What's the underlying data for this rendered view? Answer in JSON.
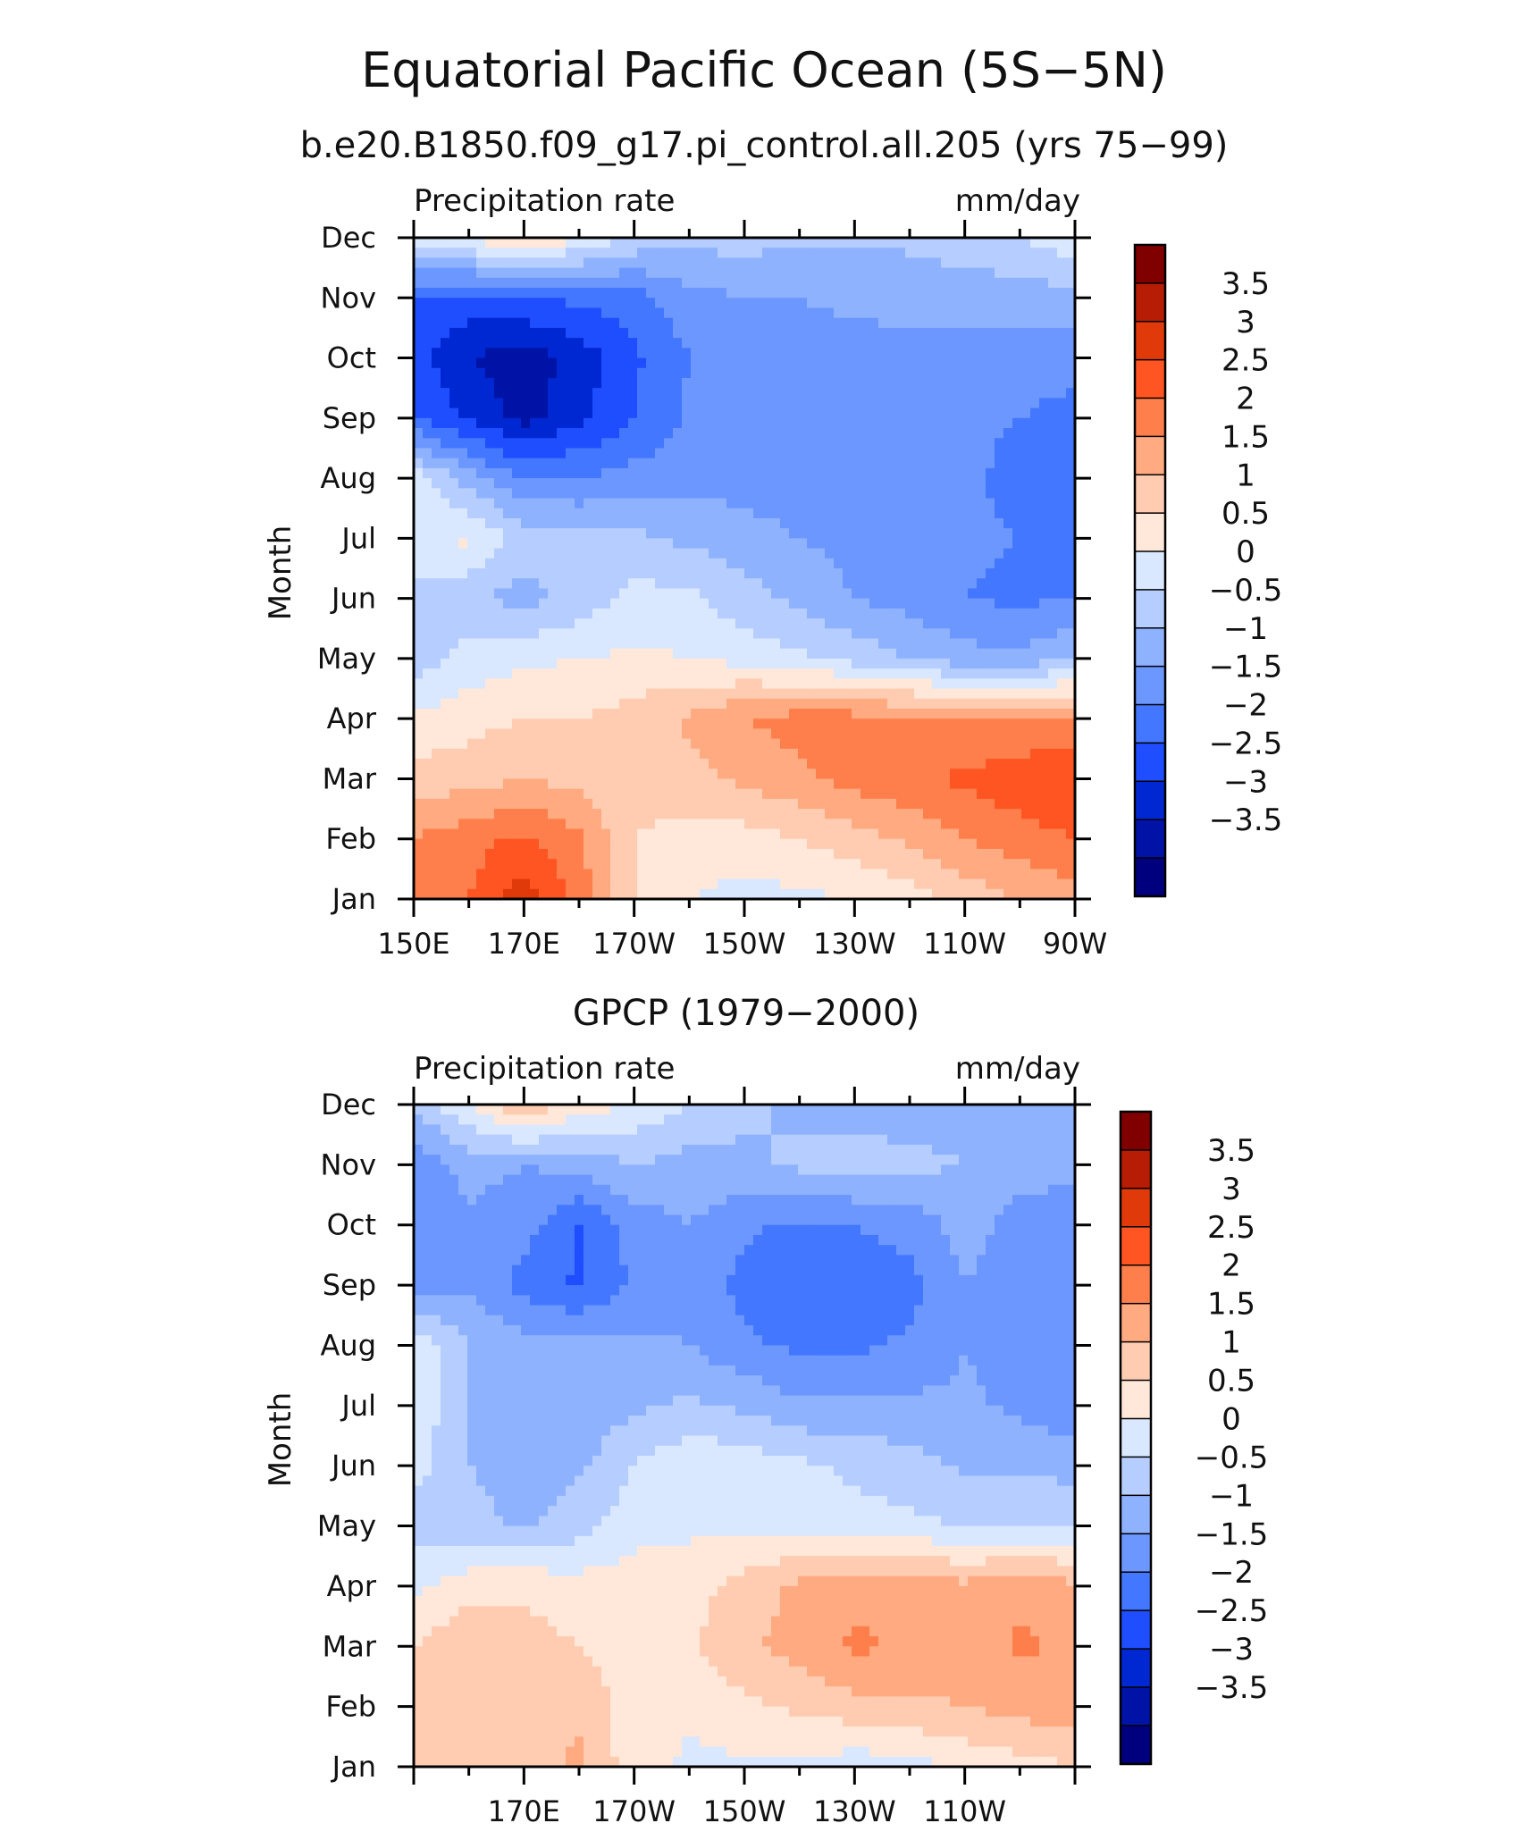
{
  "figure": {
    "title": "Equatorial Pacific Ocean (5S−5N)"
  },
  "colorbar": {
    "colors": [
      "#00007F",
      "#0013A7",
      "#0028D2",
      "#1E4EFF",
      "#4477FF",
      "#6B97FF",
      "#8FB2FF",
      "#B5CDFF",
      "#D9E7FF",
      "#FFE8D9",
      "#FFCCB2",
      "#FFAA80",
      "#FF7F4C",
      "#FF5522",
      "#E13A0A",
      "#B71C05",
      "#800000"
    ],
    "labels": [
      "3.5",
      "3",
      "2.5",
      "2",
      "1.5",
      "1",
      "0.5",
      "0",
      "−0.5",
      "−1",
      "−1.5",
      "−2",
      "−2.5",
      "−3",
      "−3.5"
    ],
    "levels": [
      -3.5,
      -3,
      -2.5,
      -2,
      -1.5,
      -1,
      -0.5,
      0,
      0.5,
      1,
      1.5,
      2,
      2.5,
      3,
      3.5
    ]
  },
  "chart_data": [
    {
      "type": "heatmap",
      "title": "b.e20.B1850.f09_g17.pi_control.all.205 (yrs 75−99)",
      "left_string": "Precipitation rate",
      "right_string": "mm/day",
      "ylabel": "Month",
      "xlabel": "",
      "x_ticklabels": [
        "150E",
        "170E",
        "170W",
        "150W",
        "130W",
        "110W",
        "90W"
      ],
      "y_ticklabels": [
        "Jan",
        "Feb",
        "Mar",
        "Apr",
        "May",
        "Jun",
        "Jul",
        "Aug",
        "Sep",
        "Oct",
        "Nov",
        "Dec"
      ],
      "x_lon": [
        150,
        160,
        170,
        180,
        190,
        200,
        210,
        220,
        230,
        240,
        250,
        260,
        270
      ],
      "y_months": [
        "Jan",
        "Feb",
        "Mar",
        "Apr",
        "May",
        "Jun",
        "Jul",
        "Aug",
        "Sep",
        "Oct",
        "Nov",
        "Dec"
      ],
      "values": [
        [
          2.0,
          2.5,
          3.3,
          2.3,
          1.0,
          0.5,
          0.3,
          0.4,
          0.5,
          0.8,
          1.2,
          1.5,
          1.8
        ],
        [
          2.0,
          2.3,
          2.6,
          2.1,
          1.0,
          0.8,
          0.8,
          1.0,
          1.3,
          1.6,
          2.0,
          2.3,
          2.5
        ],
        [
          1.2,
          1.3,
          1.5,
          1.3,
          1.2,
          1.3,
          1.6,
          1.9,
          2.2,
          2.4,
          2.6,
          2.8,
          3.0
        ],
        [
          0.6,
          0.8,
          1.0,
          1.0,
          1.2,
          1.6,
          2.0,
          2.2,
          2.2,
          2.1,
          2.0,
          2.0,
          2.1
        ],
        [
          -0.3,
          0.2,
          0.4,
          0.5,
          0.6,
          0.5,
          0.3,
          0.1,
          -0.2,
          -0.5,
          -0.8,
          -0.9,
          -0.5
        ],
        [
          -0.2,
          -0.4,
          -0.7,
          -0.3,
          0.2,
          0.1,
          -0.3,
          -0.6,
          -1.0,
          -1.2,
          -1.5,
          -1.6,
          -1.5
        ],
        [
          0.5,
          0.6,
          -0.2,
          -0.3,
          -0.4,
          -0.6,
          -0.8,
          -1.0,
          -1.2,
          -1.4,
          -1.4,
          -1.5,
          -1.7
        ],
        [
          0.3,
          -0.8,
          -1.5,
          -1.5,
          -1.3,
          -1.2,
          -1.2,
          -1.3,
          -1.3,
          -1.3,
          -1.3,
          -1.8,
          -2.0
        ],
        [
          -2.0,
          -2.6,
          -3.2,
          -2.6,
          -2.0,
          -1.4,
          -1.3,
          -1.3,
          -1.3,
          -1.3,
          -1.3,
          -1.5,
          -1.7
        ],
        [
          -2.3,
          -3.0,
          -3.3,
          -2.8,
          -2.1,
          -1.5,
          -1.3,
          -1.2,
          -1.2,
          -1.2,
          -1.2,
          -1.2,
          -1.3
        ],
        [
          -2.0,
          -2.2,
          -2.0,
          -1.9,
          -1.7,
          -1.2,
          -1.0,
          -1.0,
          -0.9,
          -0.8,
          -0.8,
          -0.8,
          -0.6
        ],
        [
          0.3,
          0.6,
          1.2,
          0.5,
          -0.1,
          -0.3,
          -0.3,
          -0.4,
          -0.4,
          -0.4,
          -0.2,
          0.0,
          0.3
        ]
      ]
    },
    {
      "type": "heatmap",
      "title": "GPCP (1979−2000)",
      "left_string": "Precipitation rate",
      "right_string": "mm/day",
      "ylabel": "Month",
      "xlabel": "",
      "x_ticklabels": [
        "170E",
        "170W",
        "150W",
        "130W",
        "110W"
      ],
      "y_ticklabels": [
        "Jan",
        "Feb",
        "Mar",
        "Apr",
        "May",
        "Jun",
        "Jul",
        "Aug",
        "Sep",
        "Oct",
        "Nov",
        "Dec"
      ],
      "x_lon": [
        150,
        160,
        170,
        180,
        190,
        200,
        210,
        220,
        230,
        240,
        250,
        260,
        270
      ],
      "y_months": [
        "Jan",
        "Feb",
        "Mar",
        "Apr",
        "May",
        "Jun",
        "Jul",
        "Aug",
        "Sep",
        "Oct",
        "Nov",
        "Dec"
      ],
      "values": [
        [
          1.0,
          1.2,
          1.3,
          1.6,
          0.7,
          0.4,
          0.4,
          0.4,
          0.2,
          0.3,
          0.6,
          0.8,
          1.0
        ],
        [
          1.1,
          1.2,
          1.3,
          1.4,
          0.7,
          0.6,
          0.9,
          1.1,
          1.3,
          1.4,
          1.5,
          1.7,
          1.8
        ],
        [
          1.0,
          1.4,
          1.2,
          1.0,
          0.8,
          0.9,
          1.4,
          1.7,
          2.1,
          1.9,
          1.7,
          2.1,
          1.9
        ],
        [
          0.4,
          0.8,
          0.9,
          0.7,
          0.8,
          0.8,
          1.2,
          1.6,
          1.8,
          1.9,
          1.6,
          1.9,
          1.6
        ],
        [
          -0.2,
          -0.3,
          -0.6,
          -0.2,
          0.3,
          0.4,
          0.4,
          0.3,
          0.2,
          0.1,
          0.0,
          0.0,
          0.0
        ],
        [
          0.2,
          -0.5,
          -0.8,
          -0.6,
          0.0,
          0.4,
          0.3,
          0.1,
          -0.1,
          -0.3,
          -0.6,
          -0.6,
          -0.7
        ],
        [
          0.5,
          -0.6,
          -0.9,
          -0.9,
          -0.6,
          -0.4,
          -0.6,
          -0.9,
          -0.9,
          -0.9,
          -0.9,
          -1.1,
          -1.4
        ],
        [
          0.4,
          -0.5,
          -0.8,
          -0.8,
          -0.9,
          -1.0,
          -1.4,
          -1.6,
          -1.6,
          -1.4,
          -1.0,
          -1.3,
          -1.5
        ],
        [
          -1.2,
          -1.1,
          -1.7,
          -2.1,
          -1.4,
          -1.1,
          -1.7,
          -1.9,
          -1.8,
          -1.7,
          -1.0,
          -1.3,
          -1.5
        ],
        [
          -1.3,
          -1.1,
          -1.3,
          -2.0,
          -1.3,
          -1.0,
          -1.4,
          -1.6,
          -1.5,
          -1.3,
          -0.8,
          -1.2,
          -1.5
        ],
        [
          -1.4,
          -0.8,
          -1.0,
          -0.8,
          -0.5,
          -0.7,
          -0.6,
          -0.4,
          -0.3,
          -0.4,
          -0.5,
          -0.8,
          -0.7
        ],
        [
          -0.4,
          0.5,
          1.5,
          0.8,
          0.4,
          0.0,
          -0.4,
          -0.6,
          -0.7,
          -0.7,
          -0.7,
          -0.7,
          -0.6
        ]
      ]
    }
  ]
}
